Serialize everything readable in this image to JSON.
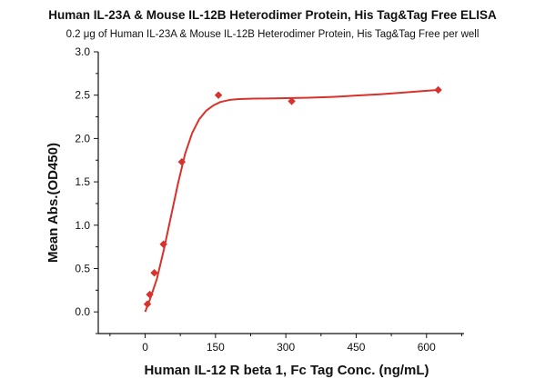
{
  "chart_data": {
    "type": "scatter",
    "title": "Human IL-23A & Mouse IL-12B Heterodimer Protein, His Tag&Tag Free ELISA",
    "subtitle": "0.2 μg of Human IL-23A & Mouse IL-12B Heterodimer Protein, His Tag&Tag Free per well",
    "xlabel": "Human IL-12 R beta 1, Fc Tag Conc. (ng/mL)",
    "ylabel": "Mean Abs.(OD450)",
    "xlim": [
      -100,
      680
    ],
    "ylim": [
      -0.25,
      3.0
    ],
    "xticks": [
      0,
      150,
      300,
      450,
      600
    ],
    "xtick_labels": [
      "0",
      "150",
      "300",
      "450",
      "600"
    ],
    "yticks": [
      0.0,
      0.5,
      1.0,
      1.5,
      2.0,
      2.5,
      3.0
    ],
    "ytick_labels": [
      "0.0",
      "0.5",
      "1.0",
      "1.5",
      "2.0",
      "2.5",
      "3.0"
    ],
    "grid": false,
    "marker_color": "#d9312b",
    "curve_color": "#d9312b",
    "series": [
      {
        "x": [
          4.88,
          9.77,
          19.53,
          39.06,
          78.13,
          156.25,
          312.5,
          625
        ],
        "y": [
          0.09,
          0.2,
          0.45,
          0.78,
          1.73,
          2.5,
          2.43,
          2.56
        ]
      }
    ],
    "fit_curve": {
      "x": [
        0,
        10,
        25,
        40,
        55,
        70,
        85,
        100,
        115,
        130,
        145,
        160,
        180,
        200,
        230,
        260,
        300,
        350,
        400,
        450,
        500,
        550,
        600,
        625
      ],
      "y": [
        0.0,
        0.14,
        0.38,
        0.72,
        1.1,
        1.48,
        1.82,
        2.06,
        2.22,
        2.32,
        2.38,
        2.42,
        2.445,
        2.455,
        2.46,
        2.462,
        2.465,
        2.47,
        2.48,
        2.495,
        2.51,
        2.53,
        2.55,
        2.56
      ]
    }
  }
}
